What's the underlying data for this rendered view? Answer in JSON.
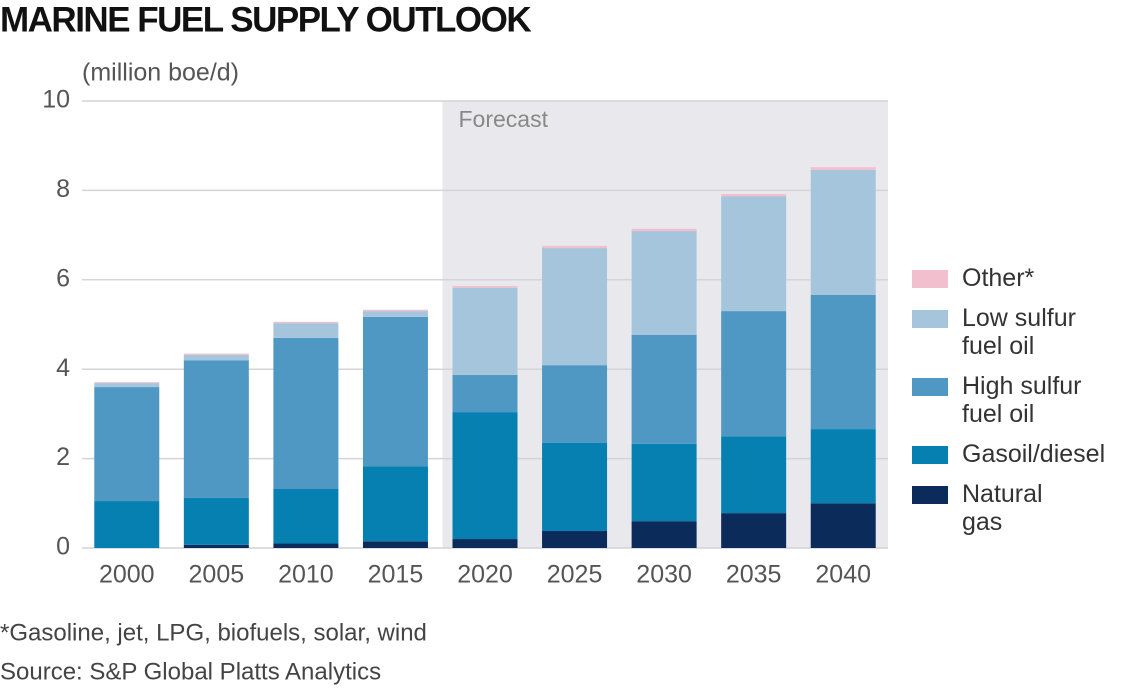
{
  "chart_data": {
    "type": "stacked_bar",
    "title": "MARINE FUEL SUPPLY OUTLOOK",
    "y_label": "(million boe/d)",
    "categories": [
      "2000",
      "2005",
      "2010",
      "2015",
      "2020",
      "2025",
      "2030",
      "2035",
      "2040"
    ],
    "forecast": {
      "label": "Forecast",
      "from": "2020",
      "color": "#e9e9ed"
    },
    "series": [
      {
        "name": "Natural gas",
        "color": "#0b2b5b",
        "values": [
          0,
          0.07,
          0.1,
          0.15,
          0.2,
          0.38,
          0.6,
          0.78,
          1.0
        ]
      },
      {
        "name": "Gasoil/diesel",
        "color": "#0580b0",
        "values": [
          1.05,
          1.05,
          1.22,
          1.68,
          2.84,
          1.97,
          1.73,
          1.72,
          1.66
        ]
      },
      {
        "name": "High sulfur fuel oil",
        "color": "#4e98c3",
        "values": [
          2.55,
          3.08,
          3.38,
          3.34,
          0.83,
          1.74,
          2.44,
          2.8,
          3.0
        ]
      },
      {
        "name": "Low sulfur fuel oil",
        "color": "#a5c5dc",
        "values": [
          0.09,
          0.12,
          0.33,
          0.13,
          1.95,
          2.62,
          2.32,
          2.57,
          2.8
        ]
      },
      {
        "name": "Other*",
        "color": "#f1bfcd",
        "values": [
          0.02,
          0.03,
          0.03,
          0.03,
          0.04,
          0.05,
          0.05,
          0.05,
          0.06
        ]
      }
    ],
    "ylim": [
      0,
      10
    ],
    "yticks": [
      0,
      2,
      4,
      6,
      8,
      10
    ],
    "grid": true,
    "footnotes": [
      "*Gasoline, jet, LPG, biofuels, solar, wind",
      "Source: S&P Global Platts Analytics"
    ]
  }
}
